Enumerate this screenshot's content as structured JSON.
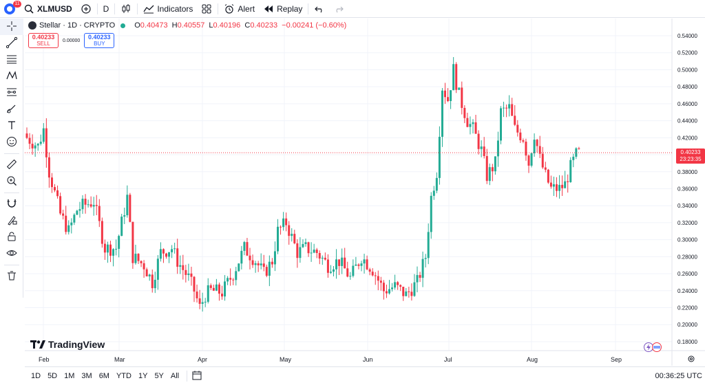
{
  "toolbar": {
    "notification_count": "11",
    "symbol": "XLMUSD",
    "interval": "D",
    "indicators_label": "Indicators",
    "alert_label": "Alert",
    "replay_label": "Replay"
  },
  "legend": {
    "title": "Stellar · 1D · CRYPTO",
    "open_key": "O",
    "open": "0.40473",
    "high_key": "H",
    "high": "0.40557",
    "low_key": "L",
    "low": "0.40196",
    "close_key": "C",
    "close": "0.40233",
    "change": "−0.00241 (−0.60%)"
  },
  "trade": {
    "sell_price": "0.40233",
    "sell_label": "SELL",
    "spread": "0.00000",
    "buy_price": "0.40233",
    "buy_label": "BUY"
  },
  "price_tag": {
    "price": "0.40233",
    "countdown": "23:23:35"
  },
  "brand": "TradingView",
  "bottom": {
    "ranges": [
      "1D",
      "5D",
      "1M",
      "3M",
      "6M",
      "YTD",
      "1Y",
      "5Y",
      "All"
    ],
    "utc_time": "00:36:25 UTC"
  },
  "colors": {
    "up": "#22ab94",
    "down": "#f23645",
    "accent": "#2962ff"
  },
  "left_tools": [
    "crosshair-icon",
    "trend-line-icon",
    "fib-icon",
    "pattern-icon",
    "forecast-icon",
    "brush-icon",
    "text-icon",
    "emoji-icon",
    "ruler-icon",
    "zoom-icon",
    "magnet-icon",
    "lock-drawings-icon",
    "lock-icon",
    "eye-icon",
    "trash-icon"
  ],
  "chart_data": {
    "type": "candlestick",
    "y_ticks": [
      "0.54000",
      "0.52000",
      "0.50000",
      "0.48000",
      "0.46000",
      "0.44000",
      "0.42000",
      "0.40000",
      "0.38000",
      "0.36000",
      "0.34000",
      "0.32000",
      "0.30000",
      "0.28000",
      "0.26000",
      "0.24000",
      "0.22000",
      "0.20000",
      "0.18000"
    ],
    "x_ticks": [
      "Feb",
      "Mar",
      "Apr",
      "May",
      "Jun",
      "Jul",
      "Aug",
      "Sep"
    ],
    "ylim": [
      0.175,
      0.545
    ],
    "last_price": 0.40233,
    "close_path": [
      [
        0,
        0.42
      ],
      [
        4,
        0.41
      ],
      [
        6,
        0.43
      ],
      [
        8,
        0.38
      ],
      [
        12,
        0.33
      ],
      [
        15,
        0.31
      ],
      [
        18,
        0.335
      ],
      [
        20,
        0.34
      ],
      [
        24,
        0.345
      ],
      [
        28,
        0.29
      ],
      [
        32,
        0.29
      ],
      [
        36,
        0.35
      ],
      [
        38,
        0.28
      ],
      [
        42,
        0.27
      ],
      [
        45,
        0.25
      ],
      [
        48,
        0.285
      ],
      [
        52,
        0.29
      ],
      [
        54,
        0.275
      ],
      [
        58,
        0.255
      ],
      [
        60,
        0.24
      ],
      [
        62,
        0.22
      ],
      [
        64,
        0.235
      ],
      [
        66,
        0.24
      ],
      [
        70,
        0.238
      ],
      [
        74,
        0.26
      ],
      [
        78,
        0.29
      ],
      [
        82,
        0.275
      ],
      [
        85,
        0.26
      ],
      [
        88,
        0.275
      ],
      [
        90,
        0.31
      ],
      [
        93,
        0.32
      ],
      [
        97,
        0.285
      ],
      [
        100,
        0.29
      ],
      [
        104,
        0.285
      ],
      [
        108,
        0.27
      ],
      [
        112,
        0.275
      ],
      [
        116,
        0.255
      ],
      [
        120,
        0.28
      ],
      [
        124,
        0.265
      ],
      [
        128,
        0.24
      ],
      [
        132,
        0.245
      ],
      [
        136,
        0.235
      ],
      [
        140,
        0.25
      ],
      [
        143,
        0.28
      ],
      [
        145,
        0.35
      ],
      [
        147,
        0.38
      ],
      [
        149,
        0.48
      ],
      [
        151,
        0.465
      ],
      [
        153,
        0.5
      ],
      [
        155,
        0.47
      ],
      [
        158,
        0.44
      ],
      [
        160,
        0.43
      ],
      [
        163,
        0.405
      ],
      [
        165,
        0.375
      ],
      [
        168,
        0.39
      ],
      [
        170,
        0.45
      ],
      [
        173,
        0.455
      ],
      [
        175,
        0.43
      ],
      [
        178,
        0.42
      ],
      [
        180,
        0.39
      ],
      [
        182,
        0.425
      ],
      [
        184,
        0.395
      ],
      [
        186,
        0.375
      ],
      [
        188,
        0.36
      ],
      [
        191,
        0.36
      ],
      [
        193,
        0.365
      ],
      [
        195,
        0.385
      ],
      [
        197,
        0.4
      ],
      [
        198,
        0.402
      ]
    ],
    "volatility": 0.009
  }
}
